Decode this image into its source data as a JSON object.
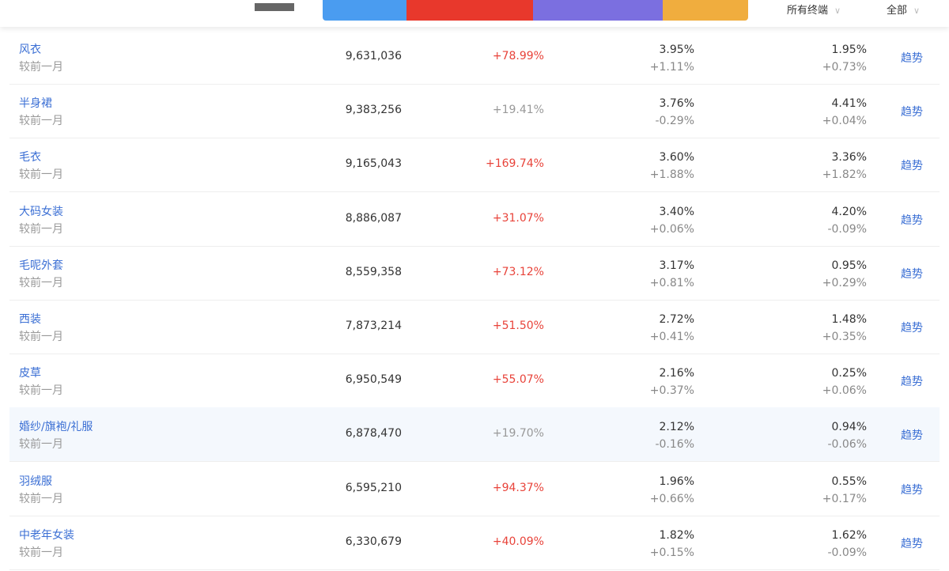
{
  "header": {
    "filters": [
      {
        "label": "所有终端"
      },
      {
        "label": "全部"
      }
    ],
    "tab_colors": [
      "#4a9cf0",
      "#e8382c",
      "#7b6fe0",
      "#f0ad3e"
    ]
  },
  "colors": {
    "up": "#e8433a",
    "neutral": "#999999",
    "link": "#3b6fd4"
  },
  "compare_label": "较前一月",
  "trend_label": "趋势",
  "rows": [
    {
      "name": "风衣",
      "value": "9,631,036",
      "change": "+78.99%",
      "up": true,
      "c3": "3.95%",
      "c3d": "+1.11%",
      "c4": "1.95%",
      "c4d": "+0.73%"
    },
    {
      "name": "半身裙",
      "value": "9,383,256",
      "change": "+19.41%",
      "up": false,
      "c3": "3.76%",
      "c3d": "-0.29%",
      "c4": "4.41%",
      "c4d": "+0.04%"
    },
    {
      "name": "毛衣",
      "value": "9,165,043",
      "change": "+169.74%",
      "up": true,
      "c3": "3.60%",
      "c3d": "+1.88%",
      "c4": "3.36%",
      "c4d": "+1.82%"
    },
    {
      "name": "大码女装",
      "value": "8,886,087",
      "change": "+31.07%",
      "up": true,
      "c3": "3.40%",
      "c3d": "+0.06%",
      "c4": "4.20%",
      "c4d": "-0.09%"
    },
    {
      "name": "毛呢外套",
      "value": "8,559,358",
      "change": "+73.12%",
      "up": true,
      "c3": "3.17%",
      "c3d": "+0.81%",
      "c4": "0.95%",
      "c4d": "+0.29%"
    },
    {
      "name": "西装",
      "value": "7,873,214",
      "change": "+51.50%",
      "up": true,
      "c3": "2.72%",
      "c3d": "+0.41%",
      "c4": "1.48%",
      "c4d": "+0.35%"
    },
    {
      "name": "皮草",
      "value": "6,950,549",
      "change": "+55.07%",
      "up": true,
      "c3": "2.16%",
      "c3d": "+0.37%",
      "c4": "0.25%",
      "c4d": "+0.06%"
    },
    {
      "name": "婚纱/旗袍/礼服",
      "value": "6,878,470",
      "change": "+19.70%",
      "up": false,
      "c3": "2.12%",
      "c3d": "-0.16%",
      "c4": "0.94%",
      "c4d": "-0.06%",
      "highlighted": true
    },
    {
      "name": "羽绒服",
      "value": "6,595,210",
      "change": "+94.37%",
      "up": true,
      "c3": "1.96%",
      "c3d": "+0.66%",
      "c4": "0.55%",
      "c4d": "+0.17%"
    },
    {
      "name": "中老年女装",
      "value": "6,330,679",
      "change": "+40.09%",
      "up": true,
      "c3": "1.82%",
      "c3d": "+0.15%",
      "c4": "1.62%",
      "c4d": "-0.09%"
    }
  ]
}
